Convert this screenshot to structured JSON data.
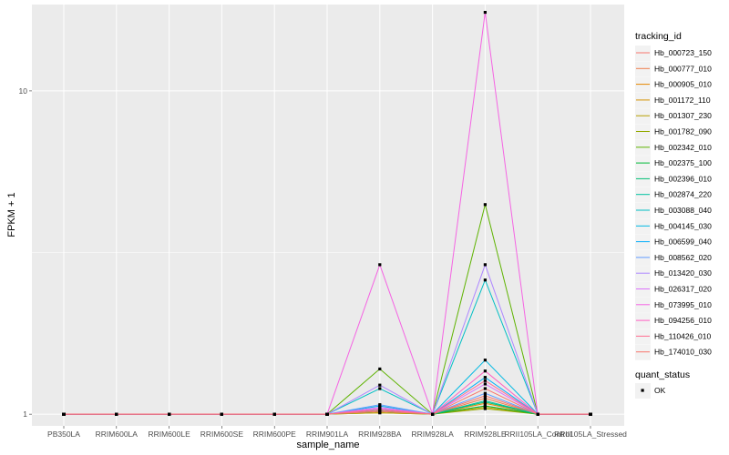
{
  "chart_data": {
    "type": "line",
    "xlabel": "sample_name",
    "ylabel": "FPKM + 1",
    "y_scale": "log10",
    "ylim": [
      0.92,
      18.5
    ],
    "y_ticks": [
      {
        "value": 1,
        "label": "1"
      },
      {
        "value": 10,
        "label": "10"
      }
    ],
    "grid": true,
    "legend_position": "right",
    "categories": [
      "PB350LA",
      "RRIM600LA",
      "RRIM600LE",
      "RRIM600SE",
      "RRIM600PE",
      "RRIM901LA",
      "RRIM928BA",
      "RRIM928LA",
      "RRIM928LE",
      "RRII105LA_Control",
      "RRII105LA_Stressed"
    ],
    "series": [
      {
        "name": "Hb_000723_150",
        "color": "#F8766D",
        "values": [
          1,
          1,
          1,
          1,
          1,
          1,
          1.03,
          1,
          1.2,
          1,
          1
        ]
      },
      {
        "name": "Hb_000777_010",
        "color": "#F07E4D",
        "values": [
          1,
          1,
          1,
          1,
          1,
          1,
          1.02,
          1,
          1.12,
          1,
          1
        ]
      },
      {
        "name": "Hb_000905_010",
        "color": "#E58700",
        "values": [
          1,
          1,
          1,
          1,
          1,
          1,
          1.02,
          1,
          1.08,
          1,
          1
        ]
      },
      {
        "name": "Hb_001172_110",
        "color": "#D39200",
        "values": [
          1,
          1,
          1,
          1,
          1,
          1,
          1.01,
          1,
          1.06,
          1,
          1
        ]
      },
      {
        "name": "Hb_001307_230",
        "color": "#B79F00",
        "values": [
          1,
          1,
          1,
          1,
          1,
          1,
          1.01,
          1,
          1.05,
          1,
          1
        ]
      },
      {
        "name": "Hb_001782_090",
        "color": "#93AA00",
        "values": [
          1,
          1,
          1,
          1,
          1,
          1,
          1.02,
          1,
          1.04,
          1,
          1
        ]
      },
      {
        "name": "Hb_002342_010",
        "color": "#5EB300",
        "values": [
          1,
          1,
          1,
          1,
          1,
          1,
          1.38,
          1,
          4.45,
          1,
          1
        ]
      },
      {
        "name": "Hb_002375_100",
        "color": "#00BA38",
        "values": [
          1,
          1,
          1,
          1,
          1,
          1,
          1.03,
          1,
          1.06,
          1,
          1
        ]
      },
      {
        "name": "Hb_002396_010",
        "color": "#00BF74",
        "values": [
          1,
          1,
          1,
          1,
          1,
          1,
          1.02,
          1,
          1.09,
          1,
          1
        ]
      },
      {
        "name": "Hb_002874_220",
        "color": "#00C19F",
        "values": [
          1,
          1,
          1,
          1,
          1,
          1,
          1.03,
          1,
          1.1,
          1,
          1
        ]
      },
      {
        "name": "Hb_003088_040",
        "color": "#00BFC4",
        "values": [
          1,
          1,
          1,
          1,
          1,
          1,
          1.2,
          1,
          2.6,
          1,
          1
        ]
      },
      {
        "name": "Hb_004145_030",
        "color": "#00B9E3",
        "values": [
          1,
          1,
          1,
          1,
          1,
          1,
          1.06,
          1,
          1.47,
          1,
          1
        ]
      },
      {
        "name": "Hb_006599_040",
        "color": "#00ADFA",
        "values": [
          1,
          1,
          1,
          1,
          1,
          1,
          1.04,
          1,
          1.3,
          1,
          1
        ]
      },
      {
        "name": "Hb_008562_020",
        "color": "#619CFF",
        "values": [
          1,
          1,
          1,
          1,
          1,
          1,
          1.07,
          1,
          1.16,
          1,
          1
        ]
      },
      {
        "name": "Hb_013420_030",
        "color": "#AE87FF",
        "values": [
          1,
          1,
          1,
          1,
          1,
          1,
          1.23,
          1,
          2.9,
          1,
          1
        ]
      },
      {
        "name": "Hb_026317_020",
        "color": "#DB72FB",
        "values": [
          1,
          1,
          1,
          1,
          1,
          1,
          1.05,
          1,
          1.24,
          1,
          1
        ]
      },
      {
        "name": "Hb_073995_010",
        "color": "#F564E3",
        "values": [
          1,
          1,
          1,
          1,
          1,
          1,
          2.9,
          1,
          17.5,
          1,
          1
        ]
      },
      {
        "name": "Hb_094256_010",
        "color": "#FF61C3",
        "values": [
          1,
          1,
          1,
          1,
          1,
          1,
          1.04,
          1,
          1.36,
          1,
          1
        ]
      },
      {
        "name": "Hb_110426_010",
        "color": "#FF6C91",
        "values": [
          1,
          1,
          1,
          1,
          1,
          1,
          1.03,
          1,
          1.27,
          1,
          1
        ]
      },
      {
        "name": "Hb_174010_030",
        "color": "#F8766D",
        "values": [
          1,
          1,
          1,
          1,
          1,
          1,
          1.02,
          1,
          1.14,
          1,
          1
        ]
      }
    ]
  },
  "legend": {
    "series_title": "tracking_id",
    "shape_title": "quant_status",
    "shape_entries": [
      "OK"
    ]
  },
  "colors": {
    "panel_background": "#EBEBEB",
    "grid_major": "#FFFFFF",
    "point": "#000000"
  }
}
